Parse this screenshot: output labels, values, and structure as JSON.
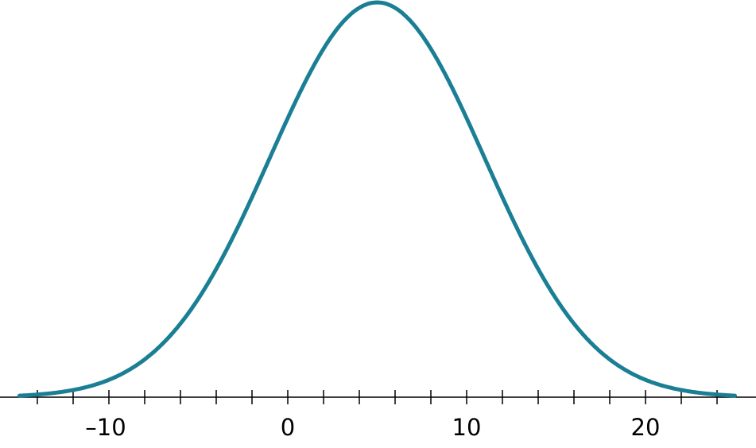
{
  "chart_data": {
    "type": "line",
    "title": "",
    "xlabel": "",
    "ylabel": "",
    "distribution": {
      "kind": "normal",
      "mean": 5,
      "sd": 6
    },
    "xlim": [
      -16,
      26
    ],
    "curve_x_range": [
      -15,
      25
    ],
    "minor_tick_step": 2,
    "tick_labels": [
      {
        "value": -10,
        "label": "–10"
      },
      {
        "value": 0,
        "label": "0"
      },
      {
        "value": 10,
        "label": "10"
      },
      {
        "value": 20,
        "label": "20"
      }
    ],
    "grid": false,
    "y_axis_shown": false,
    "line_color": "#1a7f94",
    "axis_color": "#000000"
  }
}
